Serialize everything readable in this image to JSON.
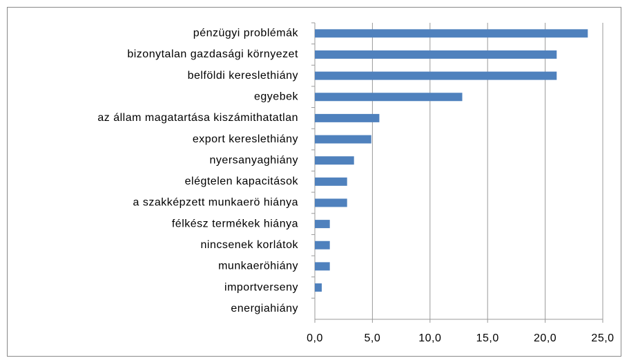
{
  "chart_data": {
    "type": "hbar",
    "categories": [
      "pénzügyi problémák",
      "bizonytalan gazdasági környezet",
      "belföldi kereslethiány",
      "egyebek",
      "az állam magatartása kiszámithatatlan",
      "export kereslethiány",
      "nyersanyaghiány",
      "elégtelen kapacitások",
      "a szakképzett munkaerö hiánya",
      "félkész termékek  hiánya",
      "nincsenek korlátok",
      "munkaeröhiány",
      "importverseny",
      "energiahiány"
    ],
    "values": [
      23.7,
      21.0,
      21.0,
      12.8,
      5.6,
      4.9,
      3.4,
      2.8,
      2.8,
      1.3,
      1.3,
      1.3,
      0.6,
      0
    ],
    "color": "#4f81bd",
    "xlim": [
      0,
      25
    ],
    "xticks": [
      {
        "value": 0,
        "label": "0,0"
      },
      {
        "value": 5,
        "label": "5,0"
      },
      {
        "value": 10,
        "label": "10,0"
      },
      {
        "value": 15,
        "label": "15,0"
      },
      {
        "value": 20,
        "label": "20,0"
      },
      {
        "value": 25,
        "label": "25,0"
      }
    ],
    "grid": true
  }
}
